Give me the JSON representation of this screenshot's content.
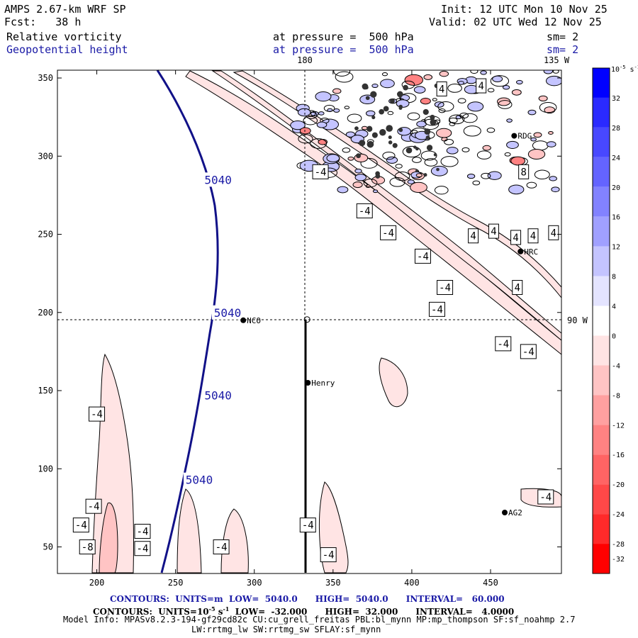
{
  "header": {
    "model": "AMPS 2.67-km WRF SP",
    "fcst_label": "Fcst:",
    "fcst_value": "38 h",
    "init_label": "Init:",
    "init_value": "12 UTC Mon 10 Nov 25",
    "valid_label": "Valid:",
    "valid_value": "02 UTC Wed 12 Nov 25",
    "field1": "Relative vorticity",
    "field1_level": "at pressure =  500 hPa",
    "field1_sm": "sm= 2",
    "field2": "Geopotential height",
    "field2_level": "at pressure =  500 hPa",
    "field2_sm": "sm= 2",
    "lon_180": "180",
    "lon_135": "135 W",
    "lon_90": "90 W"
  },
  "footer": {
    "contours1": "CONTOURS:  UNITS=m  LOW=  5040.0      HIGH=  5040.0      INTERVAL=   60.000",
    "contours2_a": "CONTOURS:  UNITS=10",
    "contours2_exp": "-5",
    "contours2_b": " s",
    "contours2_exp2": "-1",
    "contours2_c": "  LOW=  -32.000      HIGH=  32.000      INTERVAL=   4.0000",
    "model_info": "Model Info: MPASv8.2.3-194-gf29cd82c CU:cu_grell_freitas PBL:bl_mynn MP:mp_thompson SF:sf_noahmp 2.7",
    "model_info2": "LW:rrtmg_lw SW:rrtmg_sw SFLAY:sf_mynn"
  },
  "colorbar": {
    "unit_label": "10",
    "unit_exp": "-5",
    "unit_suffix": " s",
    "unit_exp2": "-1",
    "levels": [
      "32",
      "28",
      "24",
      "20",
      "16",
      "12",
      "8",
      "4",
      "0",
      "-4",
      "-8",
      "-12",
      "-16",
      "-20",
      "-24",
      "-28",
      "-32"
    ],
    "colors": [
      "#0000ff",
      "#2a2aff",
      "#4848ff",
      "#6464ff",
      "#8282ff",
      "#a0a0ff",
      "#c4c4ff",
      "#e4e4ff",
      "#ffffff",
      "#ffe4e4",
      "#ffc4c4",
      "#ffa0a0",
      "#ff8282",
      "#ff6464",
      "#ff4848",
      "#ff2a2a",
      "#ff0000"
    ]
  },
  "chart_data": {
    "type": "contour",
    "title": "Relative vorticity and Geopotential height at 500 hPa",
    "xlim": [
      175,
      495
    ],
    "ylim": [
      33,
      355
    ],
    "x_ticks": [
      "200",
      "250",
      "300",
      "350",
      "400",
      "450"
    ],
    "y_ticks": [
      "50",
      "100",
      "150",
      "200",
      "250",
      "300",
      "350"
    ],
    "height_contour_labels": [
      {
        "value": "5040",
        "x": 277,
        "y": 285
      },
      {
        "value": "5040",
        "x": 283,
        "y": 200
      },
      {
        "value": "5040",
        "x": 277,
        "y": 147
      },
      {
        "value": "5040",
        "x": 265,
        "y": 93
      }
    ],
    "vorticity_labels": [
      {
        "value": "-4",
        "x": 342,
        "y": 290
      },
      {
        "value": "-4",
        "x": 370,
        "y": 265
      },
      {
        "value": "-4",
        "x": 385,
        "y": 251
      },
      {
        "value": "-4",
        "x": 407,
        "y": 236
      },
      {
        "value": "-4",
        "x": 421,
        "y": 216
      },
      {
        "value": "-4",
        "x": 416,
        "y": 202
      },
      {
        "value": "-4",
        "x": 458,
        "y": 180
      },
      {
        "value": "-4",
        "x": 474,
        "y": 175
      },
      {
        "value": "-4",
        "x": 200,
        "y": 135
      },
      {
        "value": "-4",
        "x": 198,
        "y": 76
      },
      {
        "value": "-4",
        "x": 190,
        "y": 64
      },
      {
        "value": "-8",
        "x": 194,
        "y": 50
      },
      {
        "value": "-4",
        "x": 229,
        "y": 60
      },
      {
        "value": "-4",
        "x": 229,
        "y": 49
      },
      {
        "value": "-4",
        "x": 279,
        "y": 50
      },
      {
        "value": "-4",
        "x": 334,
        "y": 64
      },
      {
        "value": "-4",
        "x": 347,
        "y": 45
      },
      {
        "value": "-4",
        "x": 485,
        "y": 82
      },
      {
        "value": "4",
        "x": 419,
        "y": 343
      },
      {
        "value": "4",
        "x": 444,
        "y": 345
      },
      {
        "value": "8",
        "x": 471,
        "y": 290
      },
      {
        "value": "4",
        "x": 439,
        "y": 249
      },
      {
        "value": "4",
        "x": 452,
        "y": 252
      },
      {
        "value": "4",
        "x": 466,
        "y": 248
      },
      {
        "value": "4",
        "x": 477,
        "y": 249
      },
      {
        "value": "4",
        "x": 490,
        "y": 251
      },
      {
        "value": "4",
        "x": 467,
        "y": 216
      }
    ],
    "stations": [
      {
        "name": "NCO",
        "x": 293,
        "y": 195
      },
      {
        "name": "Henry",
        "x": 334,
        "y": 155
      },
      {
        "name": "RDG",
        "x": 465,
        "y": 313
      },
      {
        "name": "HRC",
        "x": 469,
        "y": 239
      },
      {
        "name": "AG2",
        "x": 459,
        "y": 72
      }
    ],
    "cross_section": {
      "x": 333.5,
      "y_top": 195.5,
      "y_bottom": 33
    }
  }
}
